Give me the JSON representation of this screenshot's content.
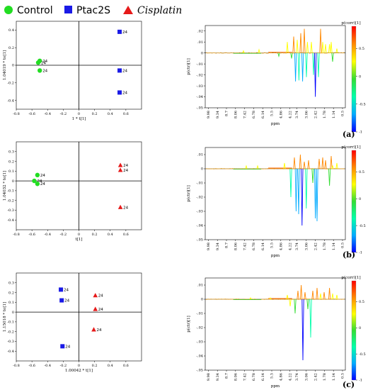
{
  "legend": [
    {
      "label": "Control",
      "shape": "circle",
      "color": "#22dd22",
      "italic": false
    },
    {
      "label": "Ptac2S",
      "shape": "square",
      "color": "#1a1ae6",
      "italic": false
    },
    {
      "label": "Cisplatin",
      "shape": "triangle",
      "color": "#e61a1a",
      "italic": true
    }
  ],
  "colorbar": {
    "title": "p(corr)[1]",
    "ticks": [
      "0.5",
      "0",
      "-0.5",
      "-1"
    ],
    "stops": [
      "#0000ff",
      "#00aaff",
      "#00ffaa",
      "#33dd33",
      "#ffff00",
      "#ff8800",
      "#ff0000"
    ]
  },
  "panels": [
    {
      "label": "(a)"
    },
    {
      "label": "(b)"
    },
    {
      "label": "(c)"
    }
  ],
  "chart_data": [
    {
      "type": "scatter",
      "xlabel": "1 * t[1]",
      "ylabel": "1.04019 * to[1]",
      "xlim": [
        -0.8,
        0.8
      ],
      "ylim": [
        -0.5,
        0.5
      ],
      "xticks": [
        -0.8,
        -0.6,
        -0.4,
        -0.2,
        0,
        0.2,
        0.4,
        0.6
      ],
      "yticks": [
        -0.4,
        -0.2,
        0,
        0.2,
        0.4
      ],
      "point_label": "24",
      "series": [
        {
          "group": "Control",
          "shape": "circle",
          "color": "#22dd22",
          "points": [
            [
              -0.5,
              0.05
            ],
            [
              -0.52,
              0.03
            ],
            [
              -0.5,
              -0.06
            ]
          ]
        },
        {
          "group": "Ptac2S",
          "shape": "square",
          "color": "#1a1ae6",
          "points": [
            [
              0.52,
              0.38
            ],
            [
              0.52,
              -0.06
            ],
            [
              0.52,
              -0.31
            ]
          ]
        }
      ]
    },
    {
      "type": "line",
      "xlabel": "ppm",
      "ylabel": "p(ctr)[1]",
      "xticks": [
        "9.98",
        "9.34",
        "8.7",
        "8.06",
        "7.42",
        "6.78",
        "6.14",
        "5.5",
        "4.86",
        "4.22",
        "3.74",
        "3.06",
        "2.42",
        "1.78",
        "1.14",
        "0.5"
      ],
      "xlim": [
        10.2,
        0.3
      ],
      "ylim": [
        -0.05,
        0.025
      ],
      "yticks": [
        -0.05,
        -0.04,
        -0.03,
        -0.02,
        -0.01,
        0,
        0.01,
        0.02
      ],
      "peaks": [
        {
          "ppm": 7.5,
          "value": 0.002
        },
        {
          "ppm": 6.4,
          "value": 0.003
        },
        {
          "ppm": 5.0,
          "value": -0.003
        },
        {
          "ppm": 4.4,
          "value": 0.01
        },
        {
          "ppm": 4.1,
          "value": -0.005
        },
        {
          "ppm": 3.95,
          "value": 0.015
        },
        {
          "ppm": 3.82,
          "value": -0.026
        },
        {
          "ppm": 3.7,
          "value": 0.012
        },
        {
          "ppm": 3.58,
          "value": -0.025
        },
        {
          "ppm": 3.45,
          "value": 0.018
        },
        {
          "ppm": 3.32,
          "value": -0.026
        },
        {
          "ppm": 3.2,
          "value": 0.022
        },
        {
          "ppm": 3.05,
          "value": -0.022
        },
        {
          "ppm": 2.98,
          "value": 0.01
        },
        {
          "ppm": 2.7,
          "value": 0.01
        },
        {
          "ppm": 2.55,
          "value": -0.02
        },
        {
          "ppm": 2.42,
          "value": -0.04
        },
        {
          "ppm": 2.2,
          "value": -0.022
        },
        {
          "ppm": 2.05,
          "value": 0.022
        },
        {
          "ppm": 1.9,
          "value": 0.01
        },
        {
          "ppm": 1.7,
          "value": 0.008
        },
        {
          "ppm": 1.42,
          "value": 0.008
        },
        {
          "ppm": 1.3,
          "value": 0.01
        },
        {
          "ppm": 1.2,
          "value": -0.008
        },
        {
          "ppm": 0.9,
          "value": 0.004
        }
      ]
    },
    {
      "type": "scatter",
      "xlabel": "t[1]",
      "ylabel": "1.04032 * to[1]",
      "xlim": [
        -0.8,
        0.8
      ],
      "ylim": [
        -0.5,
        0.4
      ],
      "xticks": [
        -0.8,
        -0.6,
        -0.4,
        -0.2,
        0,
        0.2,
        0.4,
        0.6
      ],
      "yticks": [
        -0.4,
        -0.3,
        -0.2,
        -0.1,
        0,
        0.1,
        0.2,
        0.3
      ],
      "point_label": "24",
      "series": [
        {
          "group": "Control",
          "shape": "circle",
          "color": "#22dd22",
          "points": [
            [
              -0.53,
              0.06
            ],
            [
              -0.57,
              0.0
            ],
            [
              -0.53,
              -0.03
            ]
          ]
        },
        {
          "group": "Cisplatin",
          "shape": "triangle",
          "color": "#e61a1a",
          "points": [
            [
              0.53,
              0.16
            ],
            [
              0.53,
              0.11
            ],
            [
              0.53,
              -0.27
            ]
          ]
        }
      ]
    },
    {
      "type": "line",
      "xlabel": "ppm",
      "ylabel": "p(ctr)[1]",
      "xticks": [
        "9.98",
        "9.34",
        "8.7",
        "8.06",
        "7.42",
        "6.78",
        "6.14",
        "5.5",
        "4.86",
        "4.22",
        "3.74",
        "3.06",
        "2.42",
        "1.78",
        "1.14",
        "0.5"
      ],
      "xlim": [
        10.2,
        0.3
      ],
      "ylim": [
        -0.05,
        0.015
      ],
      "yticks": [
        -0.05,
        -0.04,
        -0.03,
        -0.02,
        -0.01,
        0,
        0.01
      ],
      "peaks": [
        {
          "ppm": 7.3,
          "value": 0.002
        },
        {
          "ppm": 6.5,
          "value": 0.002
        },
        {
          "ppm": 4.6,
          "value": 0.004
        },
        {
          "ppm": 4.15,
          "value": -0.02
        },
        {
          "ppm": 3.9,
          "value": 0.008
        },
        {
          "ppm": 3.78,
          "value": -0.03
        },
        {
          "ppm": 3.6,
          "value": -0.032
        },
        {
          "ppm": 3.48,
          "value": 0.01
        },
        {
          "ppm": 3.36,
          "value": -0.04
        },
        {
          "ppm": 3.2,
          "value": 0.005
        },
        {
          "ppm": 3.06,
          "value": -0.028
        },
        {
          "ppm": 2.9,
          "value": 0.006
        },
        {
          "ppm": 2.6,
          "value": -0.01
        },
        {
          "ppm": 2.42,
          "value": -0.035
        },
        {
          "ppm": 2.3,
          "value": -0.037
        },
        {
          "ppm": 2.15,
          "value": 0.007
        },
        {
          "ppm": 1.9,
          "value": 0.008
        },
        {
          "ppm": 1.7,
          "value": 0.006
        },
        {
          "ppm": 1.42,
          "value": -0.012
        },
        {
          "ppm": 1.3,
          "value": 0.009
        },
        {
          "ppm": 1.2,
          "value": 0.002
        },
        {
          "ppm": 0.9,
          "value": 0.004
        }
      ]
    },
    {
      "type": "scatter",
      "xlabel": "1.00042 * t[1]",
      "ylabel": "1.15018 * to[1]",
      "xlim": [
        -0.8,
        0.8
      ],
      "ylim": [
        -0.5,
        0.4
      ],
      "xticks": [
        -0.8,
        -0.6,
        -0.4,
        -0.2,
        0,
        0.2,
        0.4,
        0.6
      ],
      "yticks": [
        -0.4,
        -0.3,
        -0.2,
        -0.1,
        0,
        0.1,
        0.2,
        0.3
      ],
      "point_label": "24",
      "series": [
        {
          "group": "Ptac2S",
          "shape": "square",
          "color": "#1a1ae6",
          "points": [
            [
              -0.23,
              0.23
            ],
            [
              -0.22,
              0.12
            ],
            [
              -0.21,
              -0.35
            ]
          ]
        },
        {
          "group": "Cisplatin",
          "shape": "triangle",
          "color": "#e61a1a",
          "points": [
            [
              0.21,
              0.17
            ],
            [
              0.21,
              0.03
            ],
            [
              0.19,
              -0.18
            ]
          ]
        }
      ]
    },
    {
      "type": "line",
      "xlabel": "ppm",
      "ylabel": "p(ctr)[1]",
      "xticks": [
        "9.98",
        "9.34",
        "8.7",
        "8.06",
        "7.42",
        "6.78",
        "6.14",
        "5.5",
        "4.86",
        "4.22",
        "3.74",
        "3.06",
        "2.42",
        "1.78",
        "1.14",
        "0.5"
      ],
      "xlim": [
        10.2,
        0.3
      ],
      "ylim": [
        -0.05,
        0.015
      ],
      "yticks": [
        -0.05,
        -0.04,
        -0.03,
        -0.02,
        -0.01,
        0,
        0.01
      ],
      "peaks": [
        {
          "ppm": 7.0,
          "value": 0.001
        },
        {
          "ppm": 5.6,
          "value": 0.001
        },
        {
          "ppm": 4.4,
          "value": 0.003
        },
        {
          "ppm": 4.2,
          "value": -0.005
        },
        {
          "ppm": 3.85,
          "value": -0.01
        },
        {
          "ppm": 3.65,
          "value": 0.006
        },
        {
          "ppm": 3.42,
          "value": 0.01
        },
        {
          "ppm": 3.3,
          "value": -0.043
        },
        {
          "ppm": 3.15,
          "value": 0.005
        },
        {
          "ppm": 2.95,
          "value": -0.007
        },
        {
          "ppm": 2.75,
          "value": -0.027
        },
        {
          "ppm": 2.6,
          "value": 0.006
        },
        {
          "ppm": 2.3,
          "value": 0.008
        },
        {
          "ppm": 2.05,
          "value": 0.004
        },
        {
          "ppm": 1.8,
          "value": 0.005
        },
        {
          "ppm": 1.42,
          "value": 0.008
        },
        {
          "ppm": 1.2,
          "value": 0.004
        },
        {
          "ppm": 0.9,
          "value": 0.003
        }
      ]
    }
  ]
}
